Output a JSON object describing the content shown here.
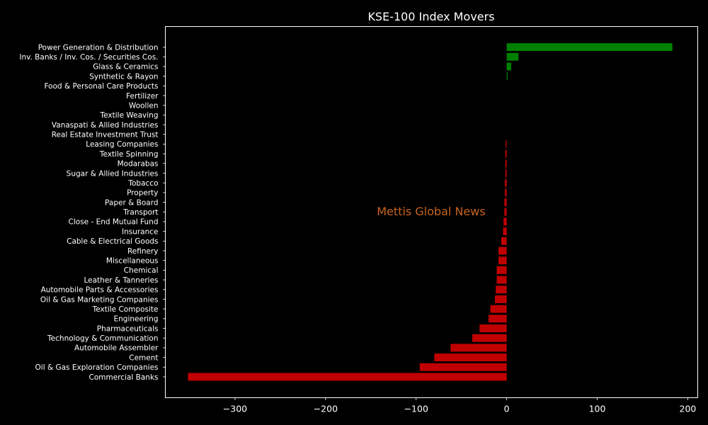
{
  "chart_data": {
    "type": "bar",
    "orientation": "horizontal",
    "title": "KSE-100 Index Movers",
    "xlabel": "",
    "ylabel": "",
    "xlim": [
      -377,
      211
    ],
    "xticks": [
      -300,
      -200,
      -100,
      0,
      100,
      200
    ],
    "xtick_labels": [
      "−300",
      "−200",
      "−100",
      "0",
      "100",
      "200"
    ],
    "grid": false,
    "categories": [
      "Power Generation & Distribution",
      "Inv. Banks / Inv. Cos. / Securities Cos.",
      "Glass & Ceramics",
      "Synthetic & Rayon",
      "Food & Personal Care Products",
      "Fertilizer",
      "Woollen",
      "Textile Weaving",
      "Vanaspati & Allied Industries",
      "Real Estate Investment Trust",
      "Leasing Companies",
      "Textile Spinning",
      "Modarabas",
      "Sugar & Allied Industries",
      "Tobacco",
      "Property",
      "Paper & Board",
      "Transport",
      "Close - End Mutual Fund",
      "Insurance",
      "Cable & Electrical Goods",
      "Refinery",
      "Miscellaneous",
      "Chemical",
      "Leather & Tanneries",
      "Automobile Parts & Accessories",
      "Oil & Gas Marketing Companies",
      "Textile Composite",
      "Engineering",
      "Pharmaceuticals",
      "Technology & Communication",
      "Automobile Assembler",
      "Cement",
      "Oil & Gas Exploration Companies",
      "Commercial Banks"
    ],
    "values": [
      183,
      13,
      5,
      1,
      0,
      0,
      0,
      0,
      0,
      0,
      -1,
      -1.5,
      -1.5,
      -1.5,
      -2,
      -2,
      -2.5,
      -2.5,
      -3.5,
      -4,
      -6,
      -9,
      -9,
      -11,
      -11,
      -12,
      -13,
      -18,
      -20,
      -30,
      -38,
      -62,
      -80,
      -96,
      -352
    ],
    "positive_color": "#008000",
    "negative_color": "#c00000",
    "watermark": "Mettis Global News",
    "watermark_color": "#c8641e"
  }
}
